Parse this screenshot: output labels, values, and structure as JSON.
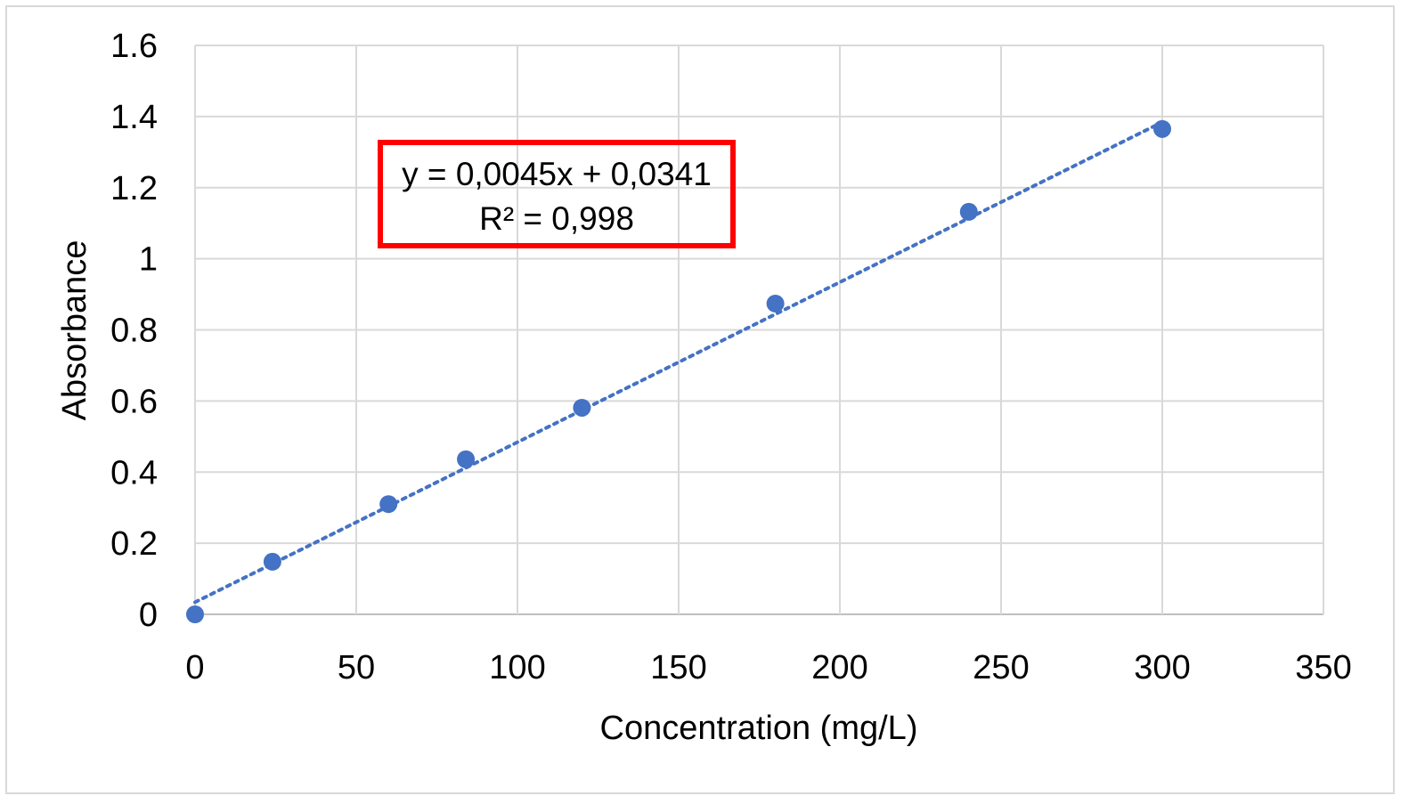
{
  "chart_data": {
    "type": "scatter",
    "title": "",
    "xlabel": "Concentration (mg/L)",
    "ylabel": "Absorbance",
    "xlim": [
      0,
      350
    ],
    "ylim": [
      0,
      1.6
    ],
    "xticks": [
      0,
      50,
      100,
      150,
      200,
      250,
      300,
      350
    ],
    "yticks": [
      0,
      0.2,
      0.4,
      0.6,
      0.8,
      1,
      1.2,
      1.4,
      1.6
    ],
    "xtick_labels": [
      "0",
      "50",
      "100",
      "150",
      "200",
      "250",
      "300",
      "350"
    ],
    "ytick_labels": [
      "0",
      "0.2",
      "0.4",
      "0.6",
      "0.8",
      "1",
      "1.2",
      "1.4",
      "1.6"
    ],
    "grid": true,
    "series": [
      {
        "name": "Absorbance",
        "color": "#4472c4",
        "x": [
          0,
          24,
          60,
          84,
          120,
          180,
          240,
          300
        ],
        "y": [
          0,
          0.148,
          0.31,
          0.436,
          0.581,
          0.874,
          1.132,
          1.365
        ]
      }
    ],
    "trendline": {
      "type": "linear",
      "slope": 0.0045,
      "intercept": 0.0341,
      "x_range": [
        0,
        300
      ],
      "style": "dotted",
      "color": "#4472c4"
    },
    "annotation": {
      "equation": "y = 0,0045x + 0,0341",
      "r_squared": "R² = 0,998",
      "border_color": "#ff0000"
    }
  }
}
